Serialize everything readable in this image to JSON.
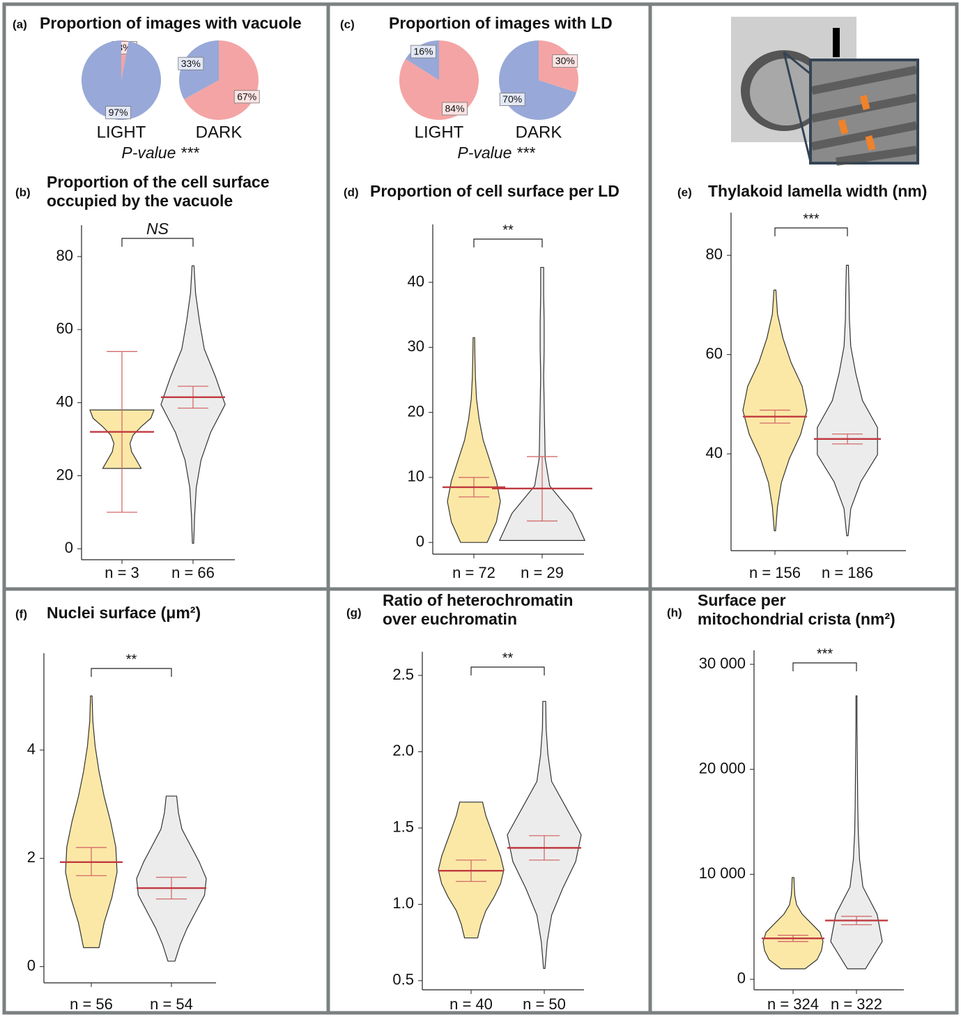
{
  "chart_data": [
    {
      "type": "pie",
      "panel": "(a)",
      "title": "Proportion of images with vacuole",
      "colors": [
        "#f4a4a4",
        "#98a8d8"
      ],
      "pies": [
        {
          "name": "LIGHT",
          "values": [
            3,
            97
          ],
          "value_labels": [
            "3%",
            "97%"
          ]
        },
        {
          "name": "DARK",
          "values": [
            67,
            33
          ],
          "value_labels": [
            "67%",
            "33%"
          ]
        }
      ],
      "note": "P-value ***"
    },
    {
      "type": "pie",
      "panel": "(c)",
      "title": "Proportion of images with LD",
      "colors": [
        "#f4a4a4",
        "#98a8d8"
      ],
      "pies": [
        {
          "name": "LIGHT",
          "values": [
            84,
            16
          ],
          "value_labels": [
            "84%",
            "16%"
          ]
        },
        {
          "name": "DARK",
          "values": [
            30,
            70
          ],
          "value_labels": [
            "30%",
            "70%"
          ]
        }
      ],
      "note": "P-value ***"
    },
    {
      "type": "violin",
      "panel": "(b)",
      "title": [
        "Proportion of the cell surface",
        "occupied by the vacuole"
      ],
      "categories": [
        "n = 3",
        "n = 66"
      ],
      "significance": "NS",
      "mean_color": "#c0393f",
      "ylim": [
        -3,
        88.6
      ],
      "yticks": [
        0,
        20,
        40,
        60,
        80
      ],
      "groups": [
        {
          "color": "#fbe8a6",
          "extent": [
            22,
            38
          ],
          "density": [
            0.6,
            0.45,
            0.3,
            0.25,
            0.35,
            0.6,
            0.9,
            1.0
          ],
          "mean": 32,
          "ci": [
            10,
            54
          ]
        },
        {
          "color": "#ececec",
          "extent": [
            1.5,
            77.5
          ],
          "density": [
            0.02,
            0.05,
            0.1,
            0.25,
            0.55,
            1.0,
            0.7,
            0.35,
            0.2,
            0.08,
            0.03
          ],
          "mean": 41.5,
          "ci": [
            38.5,
            44.5
          ]
        }
      ]
    },
    {
      "type": "violin",
      "panel": "(d)",
      "title": [
        "Proportion of cell surface per LD"
      ],
      "categories": [
        "n = 72",
        "n = 29"
      ],
      "significance": "**",
      "mean_color": "#c0393f",
      "ylim": [
        -1.8,
        48.9
      ],
      "yticks": [
        0,
        10,
        20,
        30,
        40
      ],
      "groups": [
        {
          "color": "#fbe8a6",
          "extent": [
            0,
            31.5
          ],
          "density": [
            0.5,
            0.85,
            1.0,
            0.85,
            0.6,
            0.35,
            0.2,
            0.1,
            0.06,
            0.04,
            0.03
          ],
          "mean": 8.5,
          "ci": [
            7,
            10
          ]
        },
        {
          "color": "#ececec",
          "extent": [
            0.3,
            42.3
          ],
          "density": [
            0.85,
            0.6,
            0.15,
            0.06,
            0.05,
            0.04,
            0.03,
            0.04,
            0.04,
            0.03,
            0.03
          ],
          "mean": 8.3,
          "ci": [
            3.3,
            13.2
          ]
        }
      ]
    },
    {
      "type": "violin",
      "panel": "(e)",
      "title": [
        "Thylakoid lamella width (nm)"
      ],
      "categories": [
        "n = 156",
        "n = 186"
      ],
      "significance": "***",
      "mean_color": "#c0393f",
      "ylim": [
        20.5,
        88.6
      ],
      "yticks": [
        40,
        60,
        80
      ],
      "groups": [
        {
          "color": "#fbe8a6",
          "extent": [
            24.5,
            73
          ],
          "density": [
            0.02,
            0.08,
            0.2,
            0.45,
            0.8,
            1.0,
            0.85,
            0.5,
            0.25,
            0.08,
            0.03
          ],
          "mean": 47.5,
          "ci": [
            46.2,
            48.8
          ]
        },
        {
          "color": "#ececec",
          "extent": [
            23.5,
            78
          ],
          "density": [
            0.02,
            0.1,
            0.4,
            0.9,
            0.9,
            0.45,
            0.25,
            0.1,
            0.06,
            0.05,
            0.03
          ],
          "mean": 43,
          "ci": [
            42,
            44
          ]
        }
      ]
    },
    {
      "type": "violin",
      "panel": "(f)",
      "title": [
        "Nuclei surface (μm²)"
      ],
      "categories": [
        "n = 56",
        "n = 54"
      ],
      "significance": "**",
      "mean_color": "#c0393f",
      "ylim": [
        -0.3,
        5.79
      ],
      "yticks": [
        0,
        2,
        4
      ],
      "groups": [
        {
          "color": "#fbe8a6",
          "extent": [
            0.35,
            5
          ],
          "density": [
            0.3,
            0.5,
            0.8,
            1.0,
            0.95,
            0.75,
            0.5,
            0.3,
            0.15,
            0.06,
            0.03
          ],
          "mean": 1.93,
          "ci": [
            1.68,
            2.2
          ]
        },
        {
          "color": "#ececec",
          "extent": [
            0.1,
            3.15
          ],
          "density": [
            0.1,
            0.25,
            0.45,
            0.7,
            0.95,
            1.0,
            0.8,
            0.55,
            0.3,
            0.2,
            0.15
          ],
          "mean": 1.45,
          "ci": [
            1.25,
            1.65
          ]
        }
      ]
    },
    {
      "type": "violin",
      "panel": "(g)",
      "title": [
        "Ratio of heterochromatin",
        "over euchromatin"
      ],
      "categories": [
        "n = 40",
        "n = 50"
      ],
      "significance": "**",
      "mean_color": "#c0393f",
      "ylim": [
        0.44,
        2.655
      ],
      "yticks": [
        0.5,
        {
          "value": 1,
          "label": "1.0"
        },
        1.5,
        {
          "value": 2,
          "label": "2.0"
        },
        2.5
      ],
      "groups": [
        {
          "color": "#fbe8a6",
          "extent": [
            0.78,
            1.67
          ],
          "density": [
            0.2,
            0.3,
            0.45,
            0.7,
            0.9,
            1.0,
            0.9,
            0.75,
            0.6,
            0.45,
            0.35
          ],
          "mean": 1.22,
          "ci": [
            1.15,
            1.29
          ]
        },
        {
          "color": "#ececec",
          "extent": [
            0.58,
            2.33
          ],
          "density": [
            0.02,
            0.08,
            0.2,
            0.5,
            0.85,
            1.0,
            0.6,
            0.2,
            0.1,
            0.05,
            0.04
          ],
          "mean": 1.37,
          "ci": [
            1.29,
            1.45
          ]
        }
      ]
    },
    {
      "type": "violin",
      "panel": "(h)",
      "title": [
        "Surface per",
        "mitochondrial crista (nm²)"
      ],
      "categories": [
        "n = 324",
        "n = 322"
      ],
      "significance": "***",
      "mean_color": "#c0393f",
      "ylim": [
        -1000,
        31330
      ],
      "yticks": [
        0,
        {
          "value": 10000,
          "label": "10 000"
        },
        {
          "value": 20000,
          "label": "20 000"
        },
        {
          "value": 30000,
          "label": "30 000"
        }
      ],
      "groups": [
        {
          "color": "#fbe8a6",
          "extent": [
            1000,
            9700
          ],
          "density": [
            0.4,
            0.8,
            0.95,
            1.0,
            0.9,
            0.6,
            0.3,
            0.12,
            0.06,
            0.04,
            0.03
          ],
          "mean": 3900,
          "ci": [
            3600,
            4200
          ]
        },
        {
          "color": "#ececec",
          "extent": [
            1000,
            27000
          ],
          "density": [
            0.35,
            1.0,
            0.8,
            0.25,
            0.12,
            0.07,
            0.05,
            0.04,
            0.03,
            0.02,
            0.02
          ],
          "mean": 5600,
          "ci": [
            5200,
            6000
          ]
        }
      ]
    }
  ]
}
